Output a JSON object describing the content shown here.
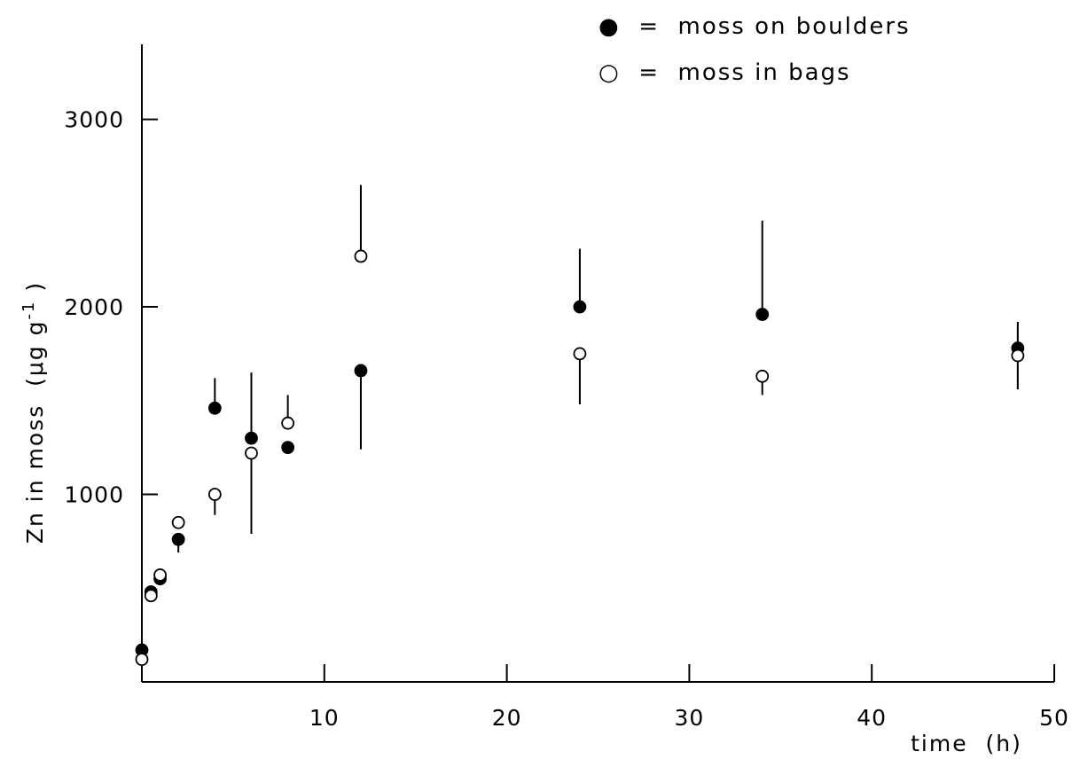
{
  "chart_data": {
    "type": "scatter",
    "title": "",
    "xlabel": "time  (h)",
    "ylabel": "Zn in moss  (μg g",
    "ylabel_sup": "-1",
    "ylabel_close": " )",
    "xlim": [
      0,
      50
    ],
    "ylim": [
      0,
      3400
    ],
    "x_ticks": [
      10,
      20,
      30,
      40,
      50
    ],
    "x_tick_labels": [
      "10",
      "20",
      "30",
      "40",
      "50"
    ],
    "y_ticks": [
      1000,
      2000,
      3000
    ],
    "y_tick_labels": [
      "1000",
      "2000",
      "3000"
    ],
    "grid": false,
    "legend_position": "top-right",
    "series": [
      {
        "name": "moss on boulders",
        "legend_label": "●  =  moss on boulders",
        "marker": "filled-circle",
        "color": "#000000",
        "points": [
          {
            "x": 0,
            "y": 170,
            "err_lo": null,
            "err_hi": null
          },
          {
            "x": 0.5,
            "y": 480,
            "err_lo": null,
            "err_hi": null
          },
          {
            "x": 1,
            "y": 550,
            "err_lo": null,
            "err_hi": null
          },
          {
            "x": 2,
            "y": 760,
            "err_lo": 690,
            "err_hi": null
          },
          {
            "x": 4,
            "y": 1460,
            "err_lo": null,
            "err_hi": 1620
          },
          {
            "x": 6,
            "y": 1300,
            "err_lo": null,
            "err_hi": 1650
          },
          {
            "x": 8,
            "y": 1250,
            "err_lo": null,
            "err_hi": null
          },
          {
            "x": 12,
            "y": 1660,
            "err_lo": 1240,
            "err_hi": null
          },
          {
            "x": 24,
            "y": 2000,
            "err_lo": null,
            "err_hi": 2310
          },
          {
            "x": 34,
            "y": 1960,
            "err_lo": null,
            "err_hi": 2460
          },
          {
            "x": 48,
            "y": 1780,
            "err_lo": null,
            "err_hi": 1920
          }
        ]
      },
      {
        "name": "moss in bags",
        "legend_label": "○  =  moss in bags",
        "marker": "open-circle",
        "color": "#000000",
        "points": [
          {
            "x": 0,
            "y": 120,
            "err_lo": null,
            "err_hi": null
          },
          {
            "x": 0.5,
            "y": 460,
            "err_lo": null,
            "err_hi": null
          },
          {
            "x": 1,
            "y": 570,
            "err_lo": null,
            "err_hi": null
          },
          {
            "x": 2,
            "y": 850,
            "err_lo": null,
            "err_hi": null
          },
          {
            "x": 4,
            "y": 1000,
            "err_lo": 890,
            "err_hi": null
          },
          {
            "x": 6,
            "y": 1220,
            "err_lo": 790,
            "err_hi": null
          },
          {
            "x": 8,
            "y": 1380,
            "err_lo": null,
            "err_hi": 1530
          },
          {
            "x": 12,
            "y": 2270,
            "err_lo": null,
            "err_hi": 2650
          },
          {
            "x": 24,
            "y": 1750,
            "err_lo": 1480,
            "err_hi": null
          },
          {
            "x": 34,
            "y": 1630,
            "err_lo": 1530,
            "err_hi": null
          },
          {
            "x": 48,
            "y": 1740,
            "err_lo": 1560,
            "err_hi": null
          }
        ]
      }
    ]
  }
}
